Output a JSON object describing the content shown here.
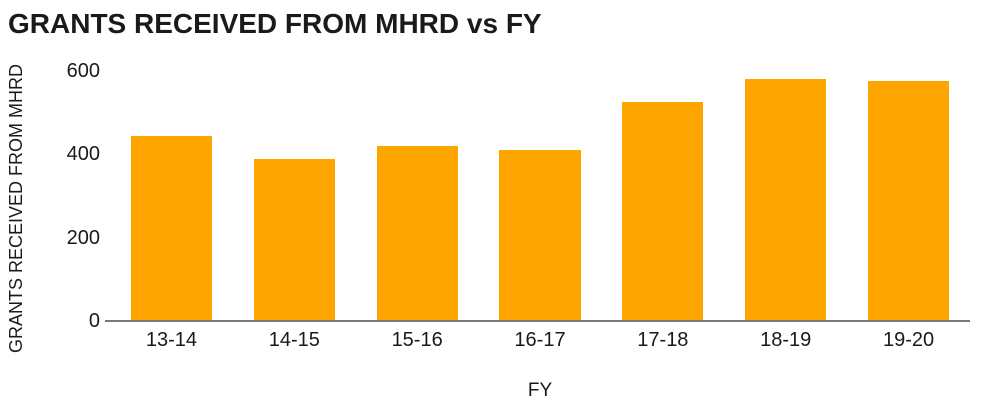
{
  "page": {
    "background": "#ffffff"
  },
  "chart_data": {
    "type": "bar",
    "title": "GRANTS RECEIVED FROM MHRD vs FY",
    "xlabel": "FY",
    "ylabel": "GRANTS RECEIVED FROM MHRD",
    "categories": [
      "13-14",
      "14-15",
      "15-16",
      "16-17",
      "17-18",
      "18-19",
      "19-20"
    ],
    "values": [
      445,
      390,
      420,
      410,
      525,
      580,
      575
    ],
    "yticks": [
      0,
      200,
      400,
      600
    ],
    "ylim": [
      0,
      600
    ],
    "grid": false,
    "legend": false,
    "bar_color": "#FFA500",
    "axis_line_color": "#7a7a7a",
    "text_color": "#1a1a1a"
  }
}
